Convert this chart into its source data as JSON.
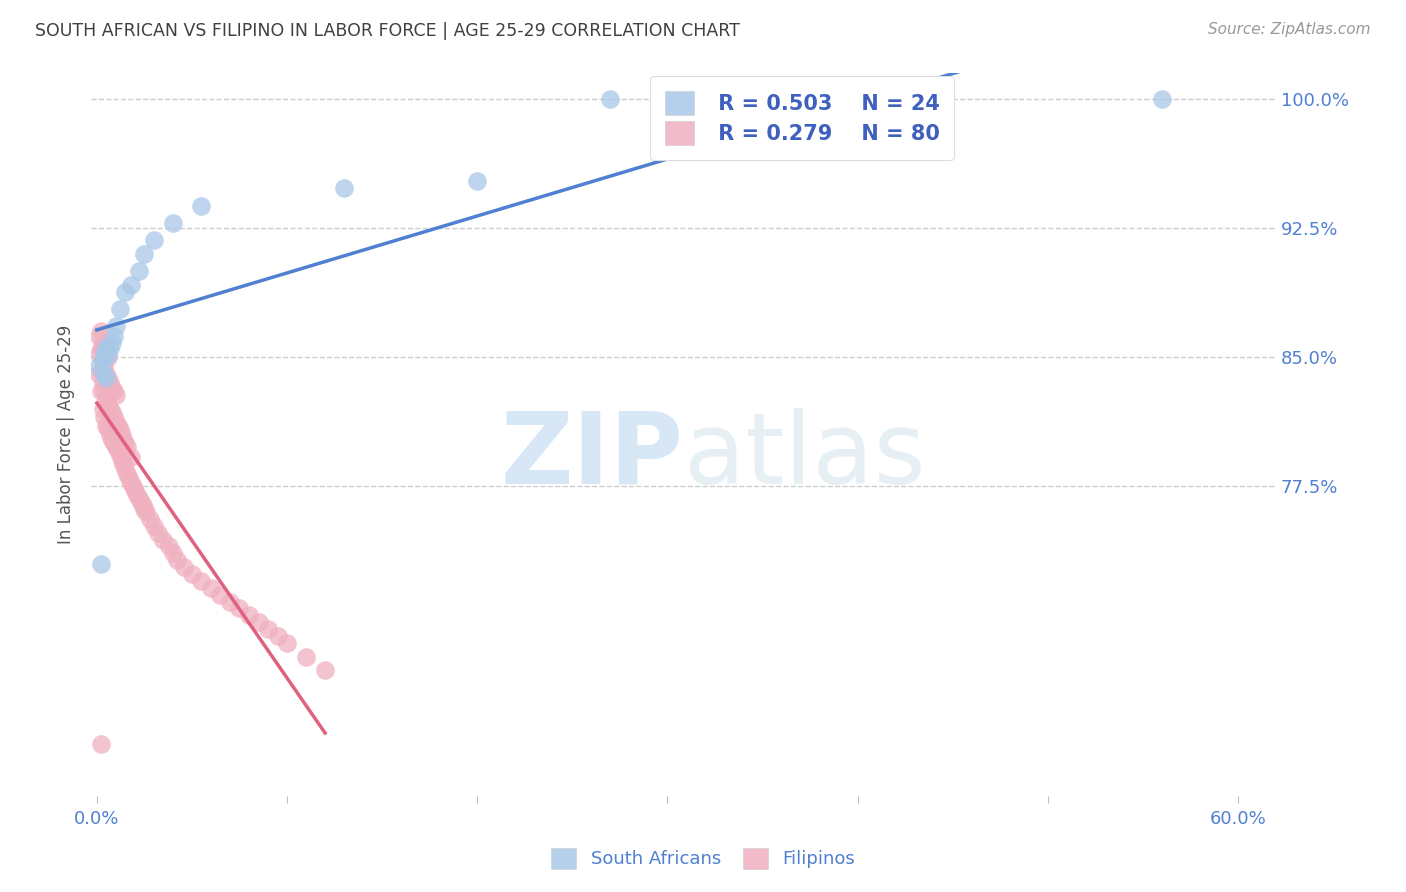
{
  "title": "SOUTH AFRICAN VS FILIPINO IN LABOR FORCE | AGE 25-29 CORRELATION CHART",
  "source": "Source: ZipAtlas.com",
  "ylabel": "In Labor Force | Age 25-29",
  "xlim": [
    -0.003,
    0.62
  ],
  "ylim": [
    0.595,
    1.015
  ],
  "xticks": [
    0.0,
    0.1,
    0.2,
    0.3,
    0.4,
    0.5,
    0.6
  ],
  "xtick_labels": [
    "0.0%",
    "",
    "",
    "",
    "",
    "",
    "60.0%"
  ],
  "yticks": [
    0.775,
    0.85,
    0.925,
    1.0
  ],
  "ytick_labels": [
    "77.5%",
    "85.0%",
    "92.5%",
    "100.0%"
  ],
  "legend_r_blue": "0.503",
  "legend_n_blue": "24",
  "legend_r_pink": "0.279",
  "legend_n_pink": "80",
  "blue_color": "#a8c8e8",
  "pink_color": "#f0b0c0",
  "trendline_blue": "#5080d0",
  "trendline_pink": "#e06080",
  "legend_text_color": "#4060c0",
  "title_color": "#404040",
  "source_color": "#999999",
  "axis_color": "#5080d0",
  "grid_color": "#c8c8c8",
  "watermark_zip": "ZIP",
  "watermark_atlas": "atlas",
  "sa_x": [
    0.001,
    0.002,
    0.003,
    0.004,
    0.004,
    0.005,
    0.005,
    0.006,
    0.007,
    0.008,
    0.009,
    0.01,
    0.012,
    0.015,
    0.018,
    0.022,
    0.025,
    0.03,
    0.04,
    0.055,
    0.13,
    0.2,
    0.27,
    0.56
  ],
  "sa_y": [
    0.845,
    0.73,
    0.848,
    0.852,
    0.84,
    0.838,
    0.856,
    0.851,
    0.855,
    0.858,
    0.862,
    0.868,
    0.878,
    0.888,
    0.892,
    0.9,
    0.91,
    0.918,
    0.928,
    0.938,
    0.948,
    0.952,
    1.0,
    1.0
  ],
  "fil_x": [
    0.001,
    0.001,
    0.001,
    0.002,
    0.002,
    0.002,
    0.002,
    0.003,
    0.003,
    0.003,
    0.003,
    0.004,
    0.004,
    0.004,
    0.004,
    0.005,
    0.005,
    0.005,
    0.005,
    0.006,
    0.006,
    0.006,
    0.006,
    0.007,
    0.007,
    0.007,
    0.008,
    0.008,
    0.008,
    0.009,
    0.009,
    0.009,
    0.01,
    0.01,
    0.01,
    0.011,
    0.011,
    0.012,
    0.012,
    0.013,
    0.013,
    0.014,
    0.014,
    0.015,
    0.015,
    0.016,
    0.016,
    0.017,
    0.018,
    0.018,
    0.019,
    0.02,
    0.021,
    0.022,
    0.023,
    0.024,
    0.025,
    0.026,
    0.028,
    0.03,
    0.032,
    0.035,
    0.038,
    0.04,
    0.042,
    0.046,
    0.05,
    0.055,
    0.06,
    0.065,
    0.07,
    0.075,
    0.08,
    0.085,
    0.09,
    0.095,
    0.1,
    0.11,
    0.12,
    0.002
  ],
  "fil_y": [
    0.84,
    0.852,
    0.862,
    0.83,
    0.842,
    0.855,
    0.865,
    0.82,
    0.835,
    0.848,
    0.858,
    0.815,
    0.83,
    0.845,
    0.855,
    0.81,
    0.825,
    0.84,
    0.852,
    0.808,
    0.822,
    0.838,
    0.85,
    0.805,
    0.82,
    0.835,
    0.802,
    0.818,
    0.832,
    0.8,
    0.815,
    0.83,
    0.798,
    0.812,
    0.828,
    0.796,
    0.81,
    0.793,
    0.808,
    0.79,
    0.805,
    0.788,
    0.802,
    0.785,
    0.8,
    0.782,
    0.798,
    0.78,
    0.777,
    0.792,
    0.775,
    0.772,
    0.77,
    0.768,
    0.766,
    0.764,
    0.762,
    0.76,
    0.756,
    0.752,
    0.748,
    0.744,
    0.74,
    0.736,
    0.732,
    0.728,
    0.724,
    0.72,
    0.716,
    0.712,
    0.708,
    0.704,
    0.7,
    0.696,
    0.692,
    0.688,
    0.684,
    0.676,
    0.668,
    0.625
  ]
}
